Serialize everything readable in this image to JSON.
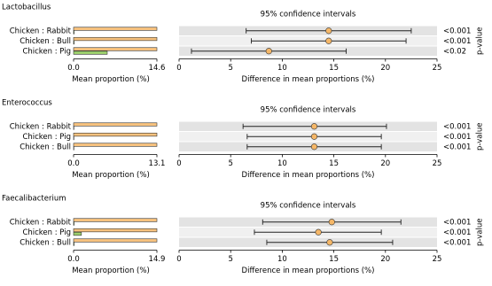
{
  "chart_data": [
    {
      "type": "bar",
      "orientation": "horizontal",
      "title": "Lactobacillus",
      "categories": [
        "Chicken : Rabbit",
        "Chicken : Bull",
        "Chicken : Pig"
      ],
      "series": [
        {
          "color": "#f7c27e",
          "values": [
            14.6,
            14.6,
            14.6
          ]
        },
        {
          "color": "#9ccf6c",
          "values": [
            0.1,
            0.1,
            5.9
          ]
        }
      ],
      "xlim": [
        0,
        14.6
      ],
      "xticks": [
        {
          "value": 0,
          "label": "0.0"
        },
        14.6
      ],
      "xlabel": "Mean proportion (%)"
    },
    {
      "type": "errorbar",
      "title": "95% confidence intervals",
      "color": "#f5b768",
      "values": [
        14.5,
        14.5,
        8.7
      ],
      "ci_low": [
        6.5,
        7,
        1.2
      ],
      "ci_high": [
        22.5,
        22,
        16.2
      ],
      "p_values": [
        "<0.001",
        "<0.001",
        "<0.02"
      ],
      "p_label": "p-value",
      "xlim": [
        0,
        25
      ],
      "xticks": [
        0,
        5,
        10,
        15,
        20,
        25
      ],
      "xlabel": "Difference in mean proportions (%)"
    },
    {
      "type": "bar",
      "orientation": "horizontal",
      "title": "Enterococcus",
      "categories": [
        "Chicken : Rabbit",
        "Chicken : Pig",
        "Chicken : Bull"
      ],
      "series": [
        {
          "color": "#f7c27e",
          "values": [
            13.1,
            13.1,
            13.1
          ]
        },
        {
          "color": "#9ccf6c",
          "values": [
            0.05,
            0.05,
            0.05
          ]
        }
      ],
      "xlim": [
        0,
        13.1
      ],
      "xticks": [
        {
          "value": 0,
          "label": "0.0"
        },
        13.1
      ],
      "xlabel": "Mean proportion (%)"
    },
    {
      "type": "errorbar",
      "title": "95% confidence intervals",
      "color": "#f5b768",
      "values": [
        13.1,
        13.1,
        13.1
      ],
      "ci_low": [
        6.2,
        6.6,
        6.6
      ],
      "ci_high": [
        20.1,
        19.6,
        19.6
      ],
      "p_values": [
        "<0.001",
        "<0.001",
        "<0.001"
      ],
      "p_label": "p-value",
      "xlim": [
        0,
        25
      ],
      "xticks": [
        0,
        5,
        10,
        15,
        20,
        25
      ],
      "xlabel": "Difference in mean proportions (%)"
    },
    {
      "type": "bar",
      "orientation": "horizontal",
      "title": "Faecalibacterium",
      "categories": [
        "Chicken : Rabbit",
        "Chicken : Pig",
        "Chicken : Bull"
      ],
      "series": [
        {
          "color": "#f7c27e",
          "values": [
            14.9,
            14.9,
            14.9
          ]
        },
        {
          "color": "#9ccf6c",
          "values": [
            0.1,
            1.4,
            0.1
          ]
        }
      ],
      "xlim": [
        0,
        14.9
      ],
      "xticks": [
        {
          "value": 0,
          "label": "0.0"
        },
        14.9
      ],
      "xlabel": "Mean proportion (%)"
    },
    {
      "type": "errorbar",
      "title": "95% confidence intervals",
      "color": "#f5b768",
      "values": [
        14.8,
        13.5,
        14.6
      ],
      "ci_low": [
        8.1,
        7.3,
        8.5
      ],
      "ci_high": [
        21.5,
        19.6,
        20.7
      ],
      "p_values": [
        "<0.001",
        "<0.001",
        "<0.001"
      ],
      "p_label": "p-value",
      "xlim": [
        0,
        25
      ],
      "xticks": [
        0,
        5,
        10,
        15,
        20,
        25
      ],
      "xlabel": "Difference in mean proportions (%)"
    }
  ]
}
